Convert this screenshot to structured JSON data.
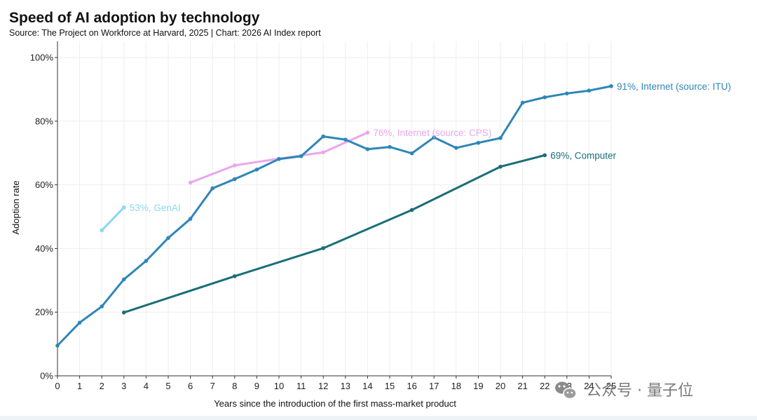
{
  "chart_data": {
    "type": "line",
    "title": "Speed of AI adoption by technology",
    "subtitle": "Source: The Project on Workforce at Harvard, 2025 | Chart: 2026 AI Index report",
    "xlabel": "Years since the introduction of the first mass-market product",
    "ylabel": "Adoption rate",
    "xlim": [
      0,
      25
    ],
    "ylim": [
      0,
      100
    ],
    "x_ticks": [
      "0",
      "1",
      "2",
      "3",
      "4",
      "5",
      "6",
      "7",
      "8",
      "9",
      "10",
      "11",
      "12",
      "13",
      "14",
      "15",
      "16",
      "17",
      "18",
      "19",
      "20",
      "21",
      "22",
      "23",
      "24",
      "25"
    ],
    "y_ticks": [
      {
        "value": 0,
        "label": "0%"
      },
      {
        "value": 20,
        "label": "20%"
      },
      {
        "value": 40,
        "label": "40%"
      },
      {
        "value": 60,
        "label": "60%"
      },
      {
        "value": 80,
        "label": "80%"
      },
      {
        "value": 100,
        "label": "100%"
      }
    ],
    "grid": true,
    "series": [
      {
        "name": "91%, Internet (source: ITU)",
        "color": "#2e86b8",
        "x": [
          0,
          1,
          2,
          3,
          4,
          5,
          6,
          7,
          8,
          9,
          10,
          11,
          12,
          13,
          14,
          15,
          16,
          17,
          18,
          19,
          20,
          21,
          22,
          23,
          24,
          25
        ],
        "y": [
          9.5,
          16.7,
          21.8,
          30.3,
          36.1,
          43.3,
          49.3,
          58.9,
          61.8,
          64.8,
          68.1,
          69.0,
          75.2,
          74.2,
          71.2,
          71.9,
          69.9,
          74.9,
          71.6,
          73.2,
          74.7,
          85.8,
          87.5,
          88.7,
          89.6,
          91.0
        ]
      },
      {
        "name": "76%, Internet (source: CPS)",
        "color": "#e9a6ee",
        "x": [
          6,
          8,
          10,
          12,
          14
        ],
        "y": [
          60.7,
          66.1,
          68.2,
          70.2,
          76.4
        ]
      },
      {
        "name": "69%, Computer",
        "color": "#1a6e78",
        "x": [
          3,
          8,
          12,
          16,
          20,
          22
        ],
        "y": [
          19.9,
          31.3,
          40.1,
          52.1,
          65.7,
          69.3
        ]
      },
      {
        "name": "53%, GenAI",
        "color": "#8ad8f2",
        "x": [
          2,
          3
        ],
        "y": [
          45.7,
          52.9
        ]
      }
    ]
  },
  "watermark": {
    "text": "公众号 · 量子位"
  }
}
